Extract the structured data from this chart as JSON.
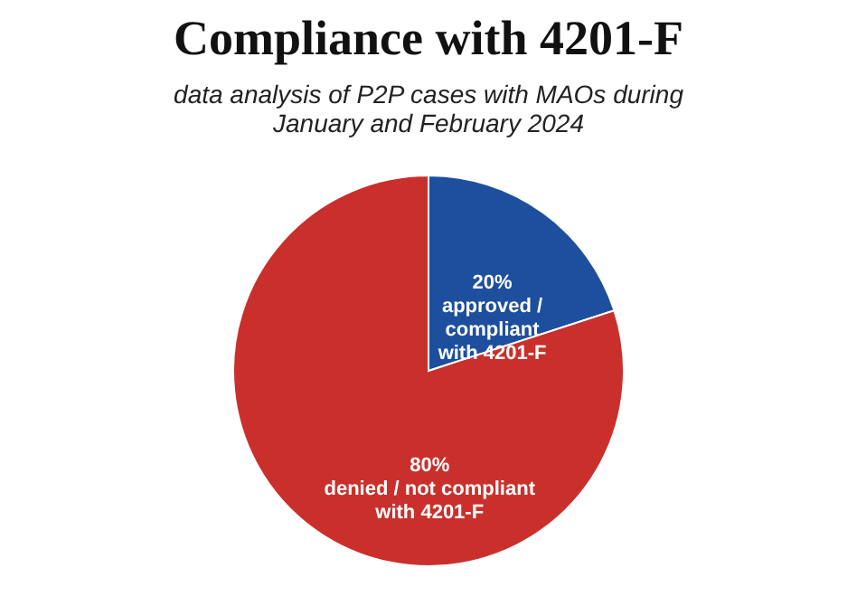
{
  "chart_data": {
    "type": "pie",
    "title": "Compliance with 4201-F",
    "subtitle": "data analysis of P2P cases with MAOs during January and February 2024",
    "categories": [
      "approved /\ncompliant\nwith 4201-F",
      "denied / not compliant\nwith 4201-F"
    ],
    "values": [
      20,
      80
    ],
    "colors": [
      "#1d4f9e",
      "#c9302c"
    ],
    "value_labels": [
      "20%",
      "80%"
    ],
    "legend": false
  }
}
